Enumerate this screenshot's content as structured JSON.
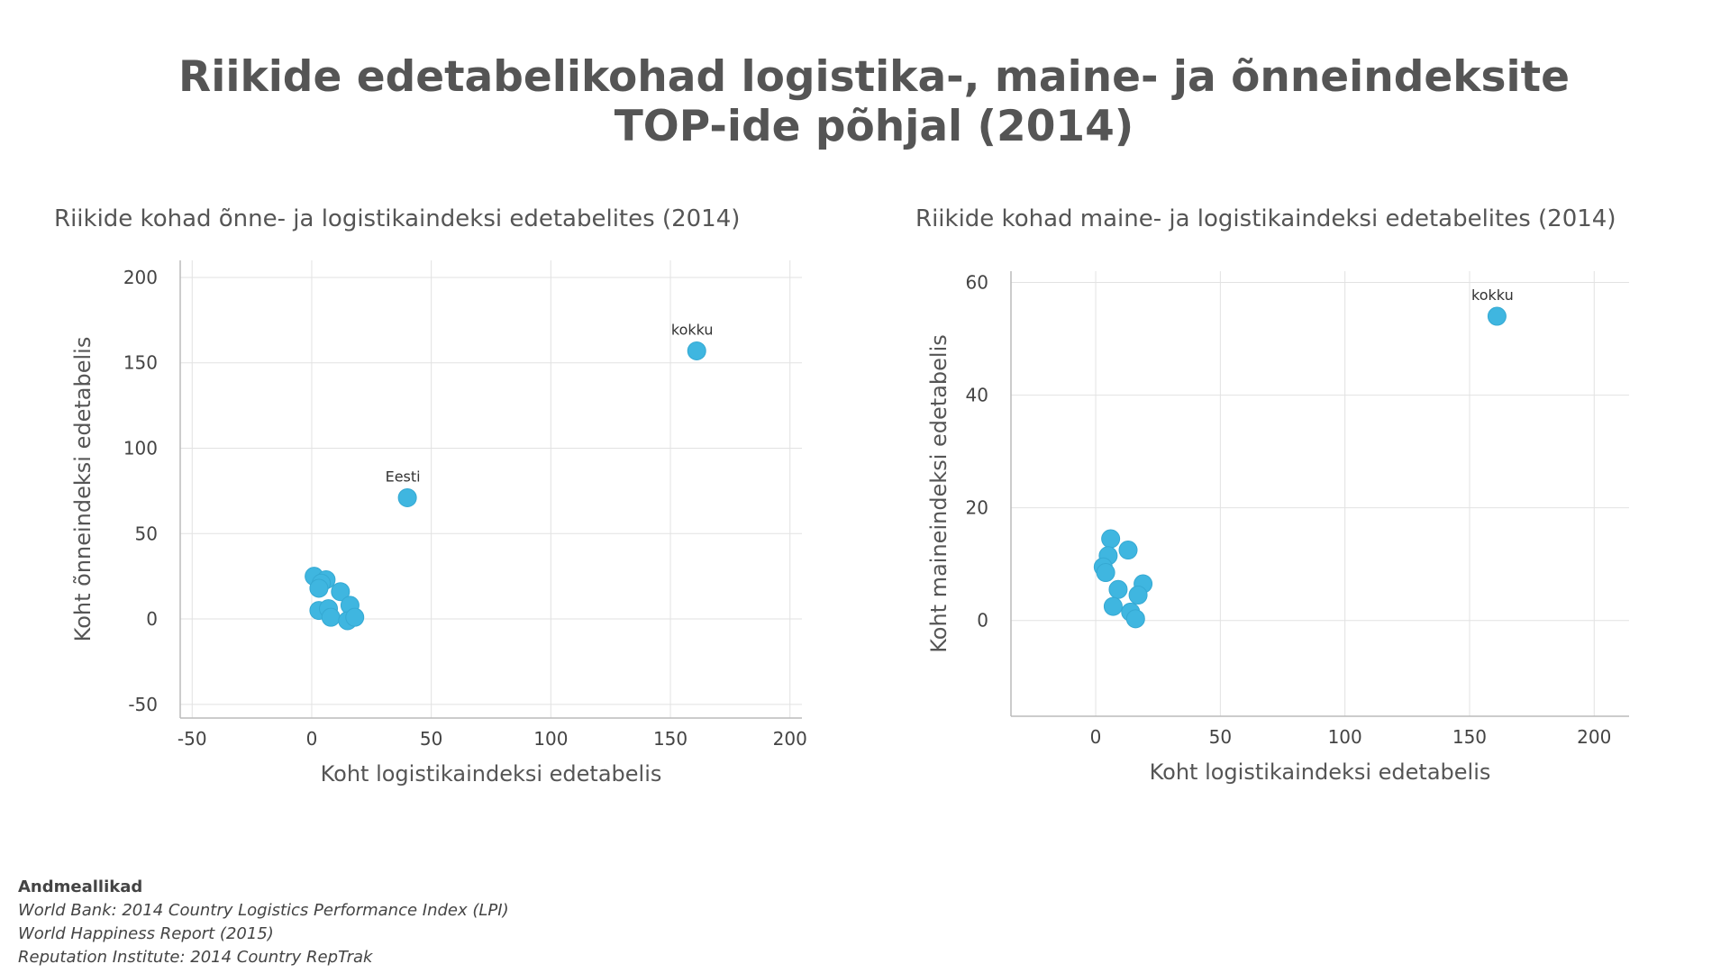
{
  "title_line1": "Riikide edetabelikohad logistika-, maine- ja õnneindeksite",
  "title_line2": "TOP-ide põhjal (2014)",
  "colors": {
    "point": "#3fb6e0",
    "grid": "#e2e2e2",
    "axis": "#bbbbbb",
    "text": "#555555"
  },
  "chart_data": [
    {
      "type": "scatter",
      "title": "Riikide kohad õnne- ja logistikaindeksi edetabelites (2014)",
      "xlabel": "Koht logistikaindeksi edetabelis",
      "ylabel": "Koht õnneindeksi edetabelis",
      "xticks": [
        -50,
        0,
        50,
        100,
        150,
        200
      ],
      "yticks": [
        -50,
        0,
        50,
        100,
        150,
        200
      ],
      "xlim": [
        -55,
        205
      ],
      "ylim": [
        -58,
        210
      ],
      "grid": true,
      "points": [
        {
          "x": 161,
          "y": 157,
          "label": "kokku"
        },
        {
          "x": 40,
          "y": 71,
          "label": "Eesti"
        },
        {
          "x": 1,
          "y": 25
        },
        {
          "x": 6,
          "y": 23
        },
        {
          "x": 4,
          "y": 21
        },
        {
          "x": 3,
          "y": 18
        },
        {
          "x": 12,
          "y": 16
        },
        {
          "x": 16,
          "y": 8
        },
        {
          "x": 3,
          "y": 5
        },
        {
          "x": 7,
          "y": 6
        },
        {
          "x": 8,
          "y": 1
        },
        {
          "x": 15,
          "y": -1
        },
        {
          "x": 18,
          "y": 1
        }
      ]
    },
    {
      "type": "scatter",
      "title": "Riikide kohad maine- ja logistikaindeksi edetabelites (2014)",
      "xlabel": "Koht logistikaindeksi edetabelis",
      "ylabel": "Koht maineindeksi edetabelis",
      "xticks": [
        0,
        50,
        100,
        150,
        200
      ],
      "yticks": [
        0,
        20,
        40,
        60
      ],
      "xlim": [
        -34,
        214
      ],
      "ylim": [
        -17,
        62
      ],
      "grid": true,
      "points": [
        {
          "x": 161,
          "y": 54,
          "label": "kokku"
        },
        {
          "x": 6,
          "y": 14.5
        },
        {
          "x": 13,
          "y": 12.5
        },
        {
          "x": 5,
          "y": 11.5
        },
        {
          "x": 3,
          "y": 9.5
        },
        {
          "x": 4,
          "y": 8.5
        },
        {
          "x": 9,
          "y": 5.5
        },
        {
          "x": 19,
          "y": 6.5
        },
        {
          "x": 17,
          "y": 4.5
        },
        {
          "x": 7,
          "y": 2.5
        },
        {
          "x": 14,
          "y": 1.5
        },
        {
          "x": 16,
          "y": 0.3
        }
      ]
    }
  ],
  "sources": {
    "heading": "Andmeallikad",
    "lines": [
      "World Bank: 2014 Country Logistics Performance Index (LPI)",
      "World Happiness Report (2015)",
      "Reputation Institute: 2014 Country RepTrak"
    ]
  }
}
